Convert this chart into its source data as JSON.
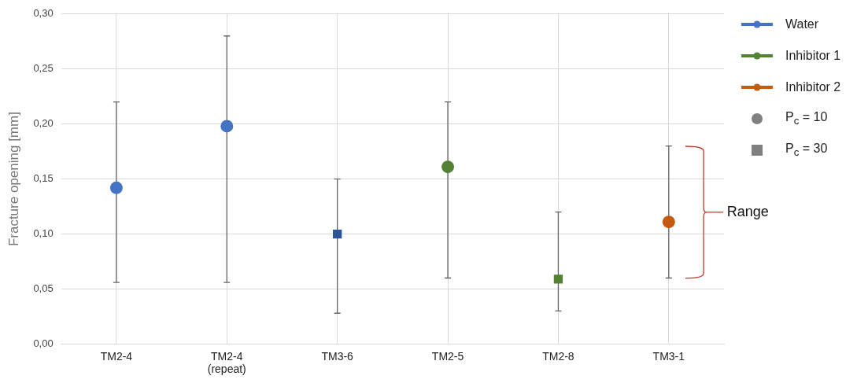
{
  "chart_data": {
    "type": "scatter",
    "ylabel": "Fracture opening [mm]",
    "categories": [
      "TM2-4",
      "TM2-4\n(repeat)",
      "TM3-6",
      "TM2-5",
      "TM2-8",
      "TM3-1"
    ],
    "series": [
      {
        "name": "Water",
        "color": "#4472c4",
        "marker": "circle",
        "values": [
          0.142,
          0.198,
          null,
          null,
          null,
          null
        ],
        "errors": [
          [
            0.056,
            0.22
          ],
          [
            0.056,
            0.28
          ],
          null,
          null,
          null,
          null
        ]
      },
      {
        "color": "#2f5597",
        "marker": "square",
        "values": [
          null,
          null,
          0.1,
          null,
          null,
          null
        ],
        "errors": [
          null,
          null,
          [
            0.028,
            0.15
          ],
          null,
          null,
          null
        ]
      },
      {
        "name": "Inhibitor 1",
        "color": "#548235",
        "marker": "circle",
        "values": [
          null,
          null,
          null,
          0.161,
          null,
          null
        ],
        "errors": [
          null,
          null,
          null,
          [
            0.06,
            0.22
          ],
          null,
          null
        ]
      },
      {
        "color": "#548235",
        "marker": "square",
        "values": [
          null,
          null,
          null,
          null,
          0.059,
          null
        ],
        "errors": [
          null,
          null,
          null,
          null,
          [
            0.03,
            0.12
          ],
          null
        ]
      },
      {
        "name": "Inhibitor 2",
        "color": "#c55a11",
        "marker": "circle",
        "values": [
          null,
          null,
          null,
          null,
          null,
          0.111
        ],
        "errors": [
          null,
          null,
          null,
          null,
          null,
          [
            0.06,
            0.18
          ]
        ]
      }
    ],
    "ylim": [
      0,
      0.3
    ],
    "yticks": [
      {
        "value": 0,
        "label": "0,00"
      },
      {
        "value": 0.05,
        "label": "0,05"
      },
      {
        "value": 0.1,
        "label": "0,10"
      },
      {
        "value": 0.15,
        "label": "0,15"
      },
      {
        "value": 0.2,
        "label": "0,20"
      },
      {
        "value": 0.25,
        "label": "0,25"
      },
      {
        "value": 0.3,
        "label": "0,30"
      }
    ],
    "grid": true,
    "legend": "right",
    "annotations": [
      "P$_{c}$ = 10",
      "P$_{c}$ = 30",
      "Range"
    ]
  }
}
